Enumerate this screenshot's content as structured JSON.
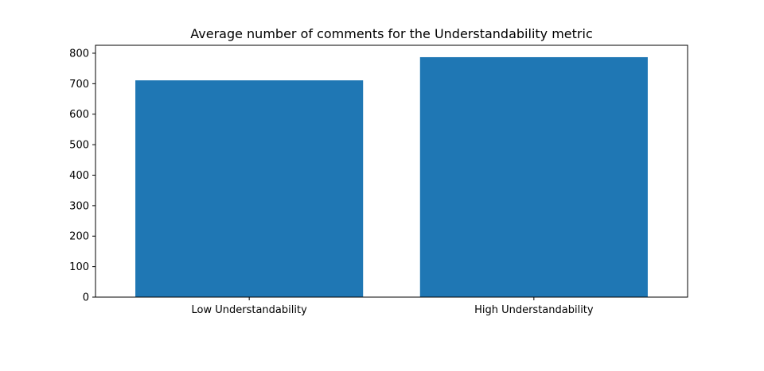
{
  "chart_data": {
    "type": "bar",
    "title": "Average number of comments for the Understandability metric",
    "xlabel": "",
    "ylabel": "",
    "categories": [
      "Low Understandability",
      "High Understandability"
    ],
    "values": [
      711,
      787
    ],
    "ylim": [
      0,
      826
    ],
    "yticks": [
      0,
      100,
      200,
      300,
      400,
      500,
      600,
      700,
      800
    ],
    "grid": false,
    "legend": "none",
    "bar_color": "#1f77b4"
  }
}
